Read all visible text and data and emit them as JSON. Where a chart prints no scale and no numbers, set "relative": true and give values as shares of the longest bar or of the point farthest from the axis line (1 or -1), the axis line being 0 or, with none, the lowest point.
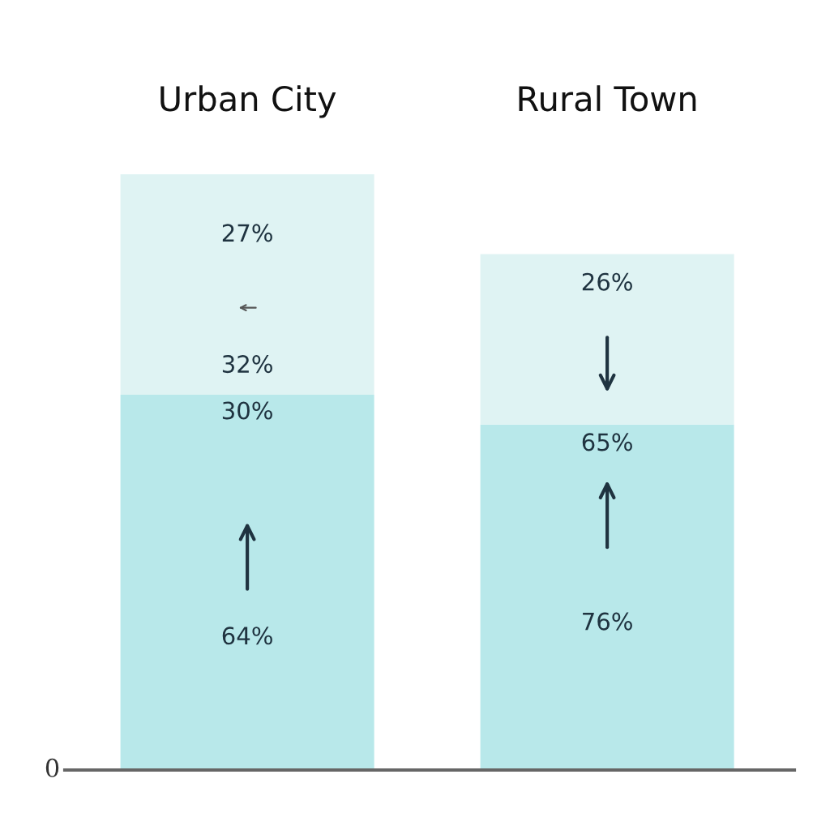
{
  "chart_data": {
    "type": "bar",
    "stacked": true,
    "relative": true,
    "categories": [
      "Urban City",
      "Rural Town"
    ],
    "series": [
      {
        "color": "#b8e8ea",
        "values": [
          0.63,
          0.58
        ]
      },
      {
        "color": "#dff3f3",
        "values": [
          0.37,
          0.286
        ]
      }
    ],
    "annotations": [
      "27%",
      "32%",
      "30%",
      "64%",
      "26%",
      "65%",
      "76%",
      "0"
    ],
    "grid": false,
    "legend": false
  }
}
